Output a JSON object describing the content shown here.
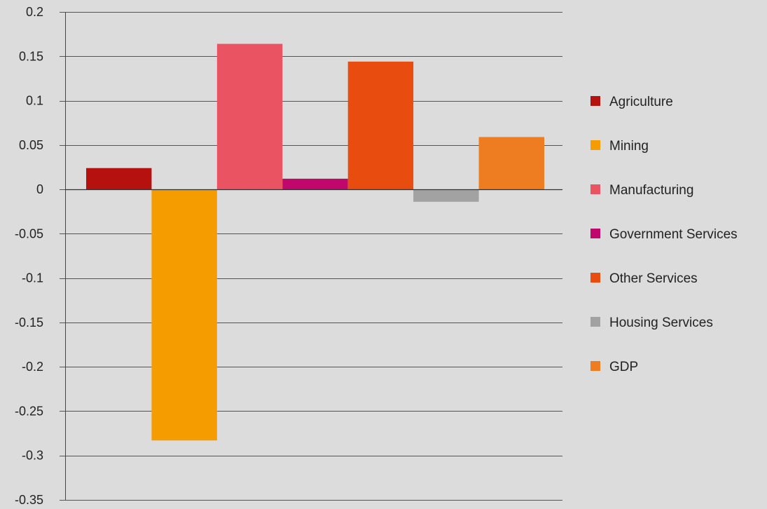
{
  "chart_data": {
    "type": "bar",
    "title": "",
    "xlabel": "",
    "ylabel": "",
    "ylim": [
      -0.35,
      0.2
    ],
    "yticks": [
      0.2,
      0.15,
      0.1,
      0.05,
      0,
      -0.05,
      -0.1,
      -0.15,
      -0.2,
      -0.25,
      -0.3,
      -0.35
    ],
    "ytick_labels": [
      "0.2",
      "0.15",
      "0.1",
      "0.05",
      "0",
      "-0.05",
      "-0.1",
      "-0.15",
      "-0.2",
      "-0.25",
      "-0.3",
      "-0.35"
    ],
    "grid": true,
    "legend_position": "right",
    "series": [
      {
        "name": "Agriculture",
        "value": 0.024,
        "color": "#b5120f"
      },
      {
        "name": "Mining",
        "value": -0.283,
        "color": "#f59c00"
      },
      {
        "name": "Manufacturing",
        "value": 0.164,
        "color": "#ea5362"
      },
      {
        "name": "Government Services",
        "value": 0.012,
        "color": "#c0076b"
      },
      {
        "name": "Other Services",
        "value": 0.144,
        "color": "#e84c0f"
      },
      {
        "name": "Housing Services",
        "value": -0.014,
        "color": "#a2a2a2"
      },
      {
        "name": "GDP",
        "value": 0.059,
        "color": "#ee7d22"
      }
    ]
  }
}
